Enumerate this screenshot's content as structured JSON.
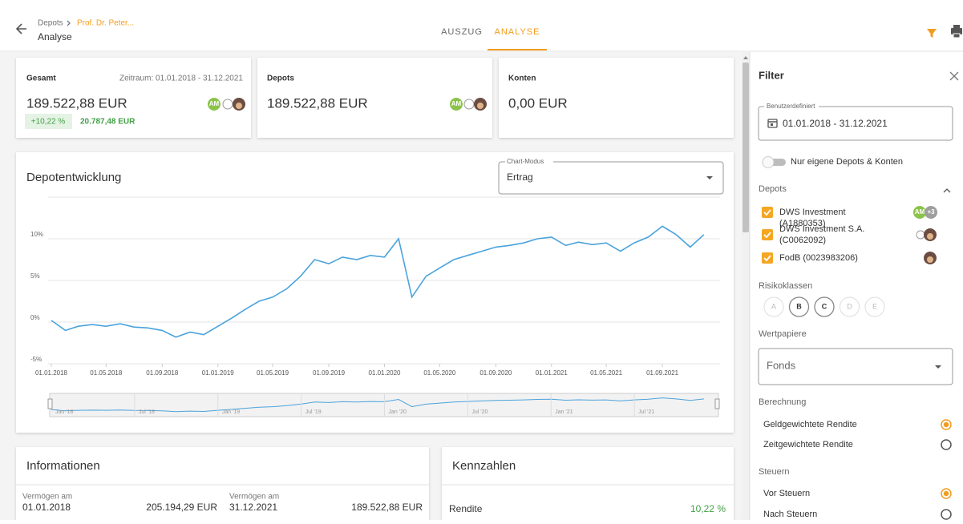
{
  "header": {
    "breadcrumb": [
      "Depots",
      "Prof. Dr. Peter..."
    ],
    "title": "Analyse",
    "tabs": [
      "AUSZUG",
      "ANALYSE"
    ]
  },
  "cards": [
    {
      "title": "Gesamt",
      "period": "Zeitraum: 01.01.2018 - 31.12.2021",
      "value": "189.522,88 EUR",
      "change_pct": "+10,22 %",
      "change_abs": "20.787,48 EUR",
      "avatar": "AM"
    },
    {
      "title": "Depots",
      "value": "189.522,88 EUR",
      "avatar": "AM"
    },
    {
      "title": "Konten",
      "value": "0,00 EUR"
    }
  ],
  "panel": {
    "title": "Depotentwicklung",
    "mode_label": "Chart-Modus",
    "mode_value": "Ertrag"
  },
  "chart": {
    "type": "line",
    "color": "#4ba3dc",
    "grid": true,
    "x": [
      "01.01.2018",
      "01.02.2018",
      "01.03.2018",
      "01.04.2018",
      "01.05.2018",
      "01.06.2018",
      "01.07.2018",
      "01.08.2018",
      "01.09.2018",
      "01.10.2018",
      "01.11.2018",
      "01.12.2018",
      "01.01.2019",
      "01.02.2019",
      "01.03.2019",
      "01.04.2019",
      "01.05.2019",
      "01.06.2019",
      "01.07.2019",
      "01.08.2019",
      "01.09.2019",
      "01.10.2019",
      "01.11.2019",
      "01.12.2019",
      "01.01.2020",
      "01.02.2020",
      "01.03.2020",
      "01.04.2020",
      "01.05.2020",
      "01.06.2020",
      "01.07.2020",
      "01.08.2020",
      "01.09.2020",
      "01.10.2020",
      "01.11.2020",
      "01.12.2020",
      "01.01.2021",
      "01.02.2021",
      "01.03.2021",
      "01.04.2021",
      "01.05.2021",
      "01.06.2021",
      "01.07.2021",
      "01.08.2021",
      "01.09.2021",
      "01.10.2021",
      "01.11.2021",
      "01.12.2021"
    ],
    "values": [
      0.2,
      -1.0,
      -0.5,
      -0.3,
      -0.5,
      -0.2,
      -0.6,
      -0.7,
      -1.0,
      -1.8,
      -1.2,
      -1.5,
      -0.5,
      0.5,
      1.5,
      2.5,
      3.0,
      4.0,
      5.5,
      7.5,
      7.0,
      7.8,
      7.5,
      8.0,
      7.8,
      10.0,
      3.0,
      5.5,
      6.5,
      7.5,
      8.0,
      8.5,
      9.0,
      9.2,
      9.5,
      10.0,
      10.2,
      9.2,
      9.6,
      9.3,
      9.5,
      8.5,
      9.5,
      10.2,
      11.5,
      10.5,
      9.0,
      10.5
    ],
    "xlim": [
      "01.01.2018",
      "31.12.2021"
    ],
    "xticks": [
      "01.01.2018",
      "01.05.2018",
      "01.09.2018",
      "01.01.2019",
      "01.05.2019",
      "01.09.2019",
      "01.01.2020",
      "01.05.2020",
      "01.09.2020",
      "01.01.2021",
      "01.05.2021",
      "01.09.2021"
    ],
    "ylim": [
      -5,
      15
    ],
    "yticks": [
      {
        "value": -5,
        "label": "-5%"
      },
      {
        "value": 0,
        "label": "0%"
      },
      {
        "value": 5,
        "label": "5%"
      },
      {
        "value": 10,
        "label": "10%"
      }
    ],
    "navigator_labels": [
      "Jan '18",
      "Jul '18",
      "Jan '19",
      "Jul '19",
      "Jan '20",
      "Jul '20",
      "Jan '21",
      "Jul '21"
    ]
  },
  "info": {
    "title": "Informationen",
    "rows": [
      [
        "Vermögen am",
        "01.01.2018",
        "205.194,29 EUR"
      ],
      [
        "Vermögen am",
        "31.12.2021",
        "189.522,88 EUR"
      ]
    ]
  },
  "kennzahlen": {
    "title": "Kennzahlen",
    "rows": [
      [
        "Rendite",
        "10,22 %"
      ]
    ]
  },
  "filter": {
    "title": "Filter",
    "range_label": "Benutzerdefiniert",
    "range": "01.01.2018 - 31.12.2021",
    "toggle": "Nur eigene Depots & Konten",
    "depots_label": "Depots",
    "depots": [
      "DWS Investment (A1880353)",
      "DWS Investment S.A. (C0062092)",
      "FodB (0023983206)"
    ],
    "avatar": "AM",
    "more": "+3",
    "risk_label": "Risikoklassen",
    "risk_classes": [
      "A",
      "B",
      "C",
      "D",
      "E"
    ],
    "securities_label": "Wertpapiere",
    "securities": "Fonds",
    "calc_label": "Berechnung",
    "calc_options": [
      "Geldgewichtete Rendite",
      "Zeitgewichtete Rendite"
    ],
    "tax_label": "Steuern",
    "tax_options": [
      "Vor Steuern",
      "Nach Steuern"
    ]
  }
}
